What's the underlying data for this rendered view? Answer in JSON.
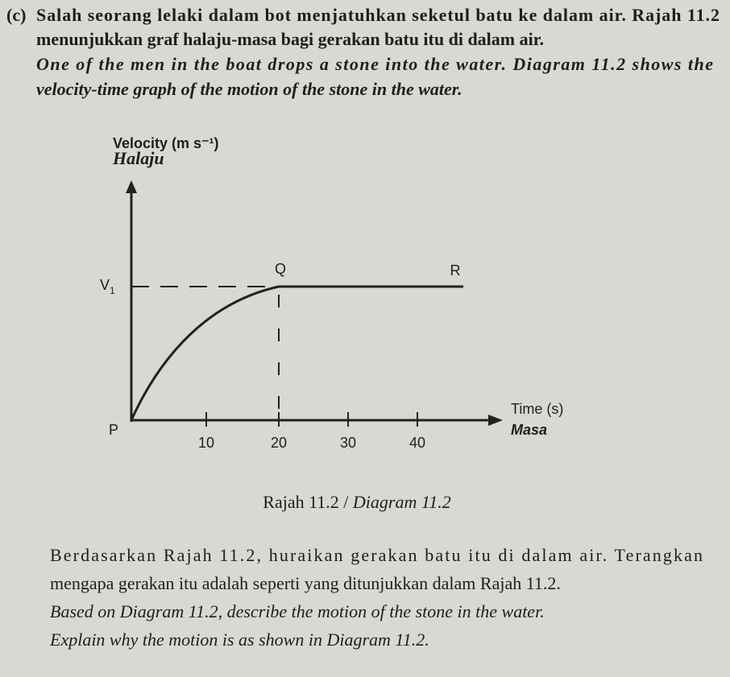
{
  "question": {
    "label": "(c)",
    "malay_lines": [
      "Salah seorang lelaki dalam bot menjatuhkan seketul batu ke dalam air.  Rajah 11.2",
      "menunjukkan graf halaju-masa bagi gerakan batu itu di dalam air."
    ],
    "english_lines": [
      "One of the men in the boat drops a stone into the water. Diagram 11.2 shows the",
      "velocity-time graph of the motion of the stone in the water."
    ]
  },
  "diagram": {
    "y_label": "Velocity (m s⁻¹)",
    "y_label_malay": "Halaju",
    "x_label": "Time (s)",
    "x_label_malay": "Masa",
    "v1": {
      "main": "V",
      "sub": "1"
    },
    "points": {
      "p": "P",
      "q": "Q",
      "r": "R"
    },
    "x_tick_labels": [
      "10",
      "20",
      "30",
      "40"
    ]
  },
  "caption": {
    "malay": "Rajah 11.2 /",
    "english": "Diagram 11.2"
  },
  "task": {
    "malay_lines": [
      "Berdasarkan Rajah 11.2, huraikan gerakan batu itu di dalam air.  Terangkan",
      "mengapa gerakan itu adalah seperti yang ditunjukkan dalam Rajah 11.2."
    ],
    "english_lines": [
      "Based on Diagram 11.2, describe the motion of the stone in the water.",
      "Explain why the motion is as shown in Diagram 11.2."
    ]
  }
}
